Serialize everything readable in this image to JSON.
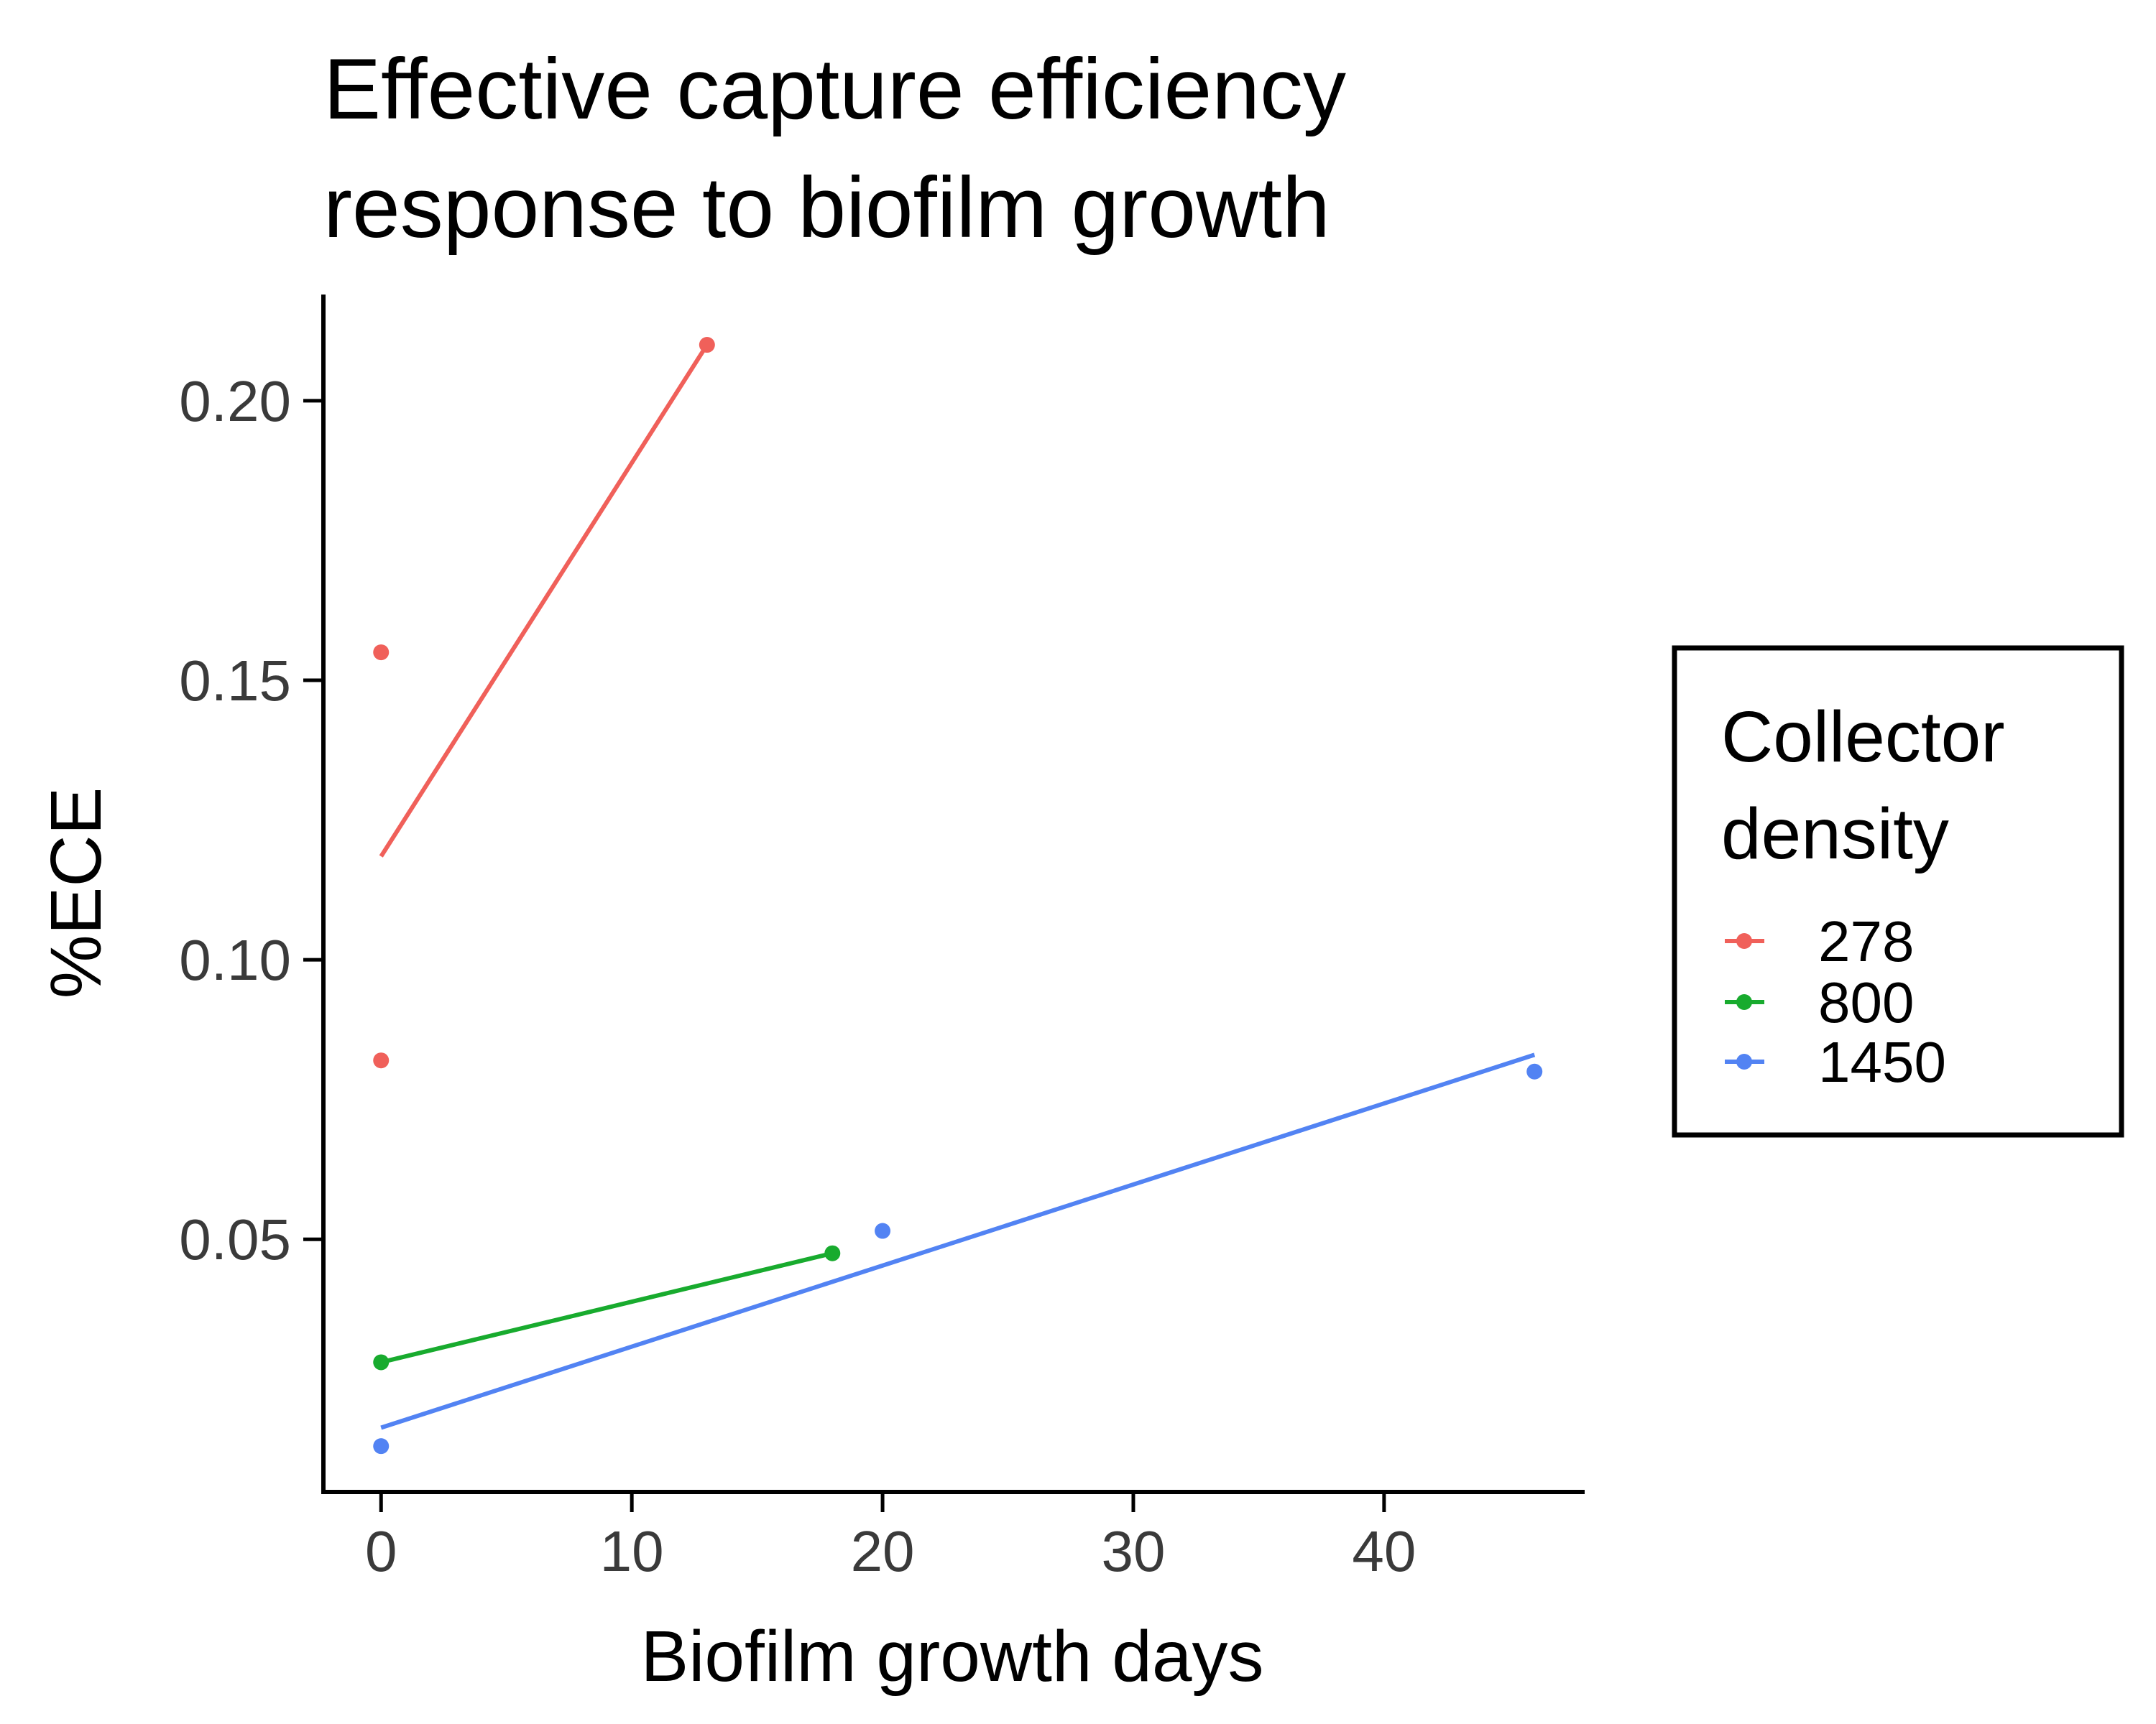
{
  "chart_data": {
    "type": "scatter",
    "title_lines": [
      "Effective capture efficiency",
      "response to biofilm growth"
    ],
    "xlabel": "Biofilm growth days",
    "ylabel": "%ECE",
    "xlim": [
      -2.3,
      48
    ],
    "ylim": [
      0.0048,
      0.219
    ],
    "x_ticks": [
      0,
      10,
      20,
      30,
      40
    ],
    "x_tick_labels": [
      "0",
      "10",
      "20",
      "30",
      "40"
    ],
    "y_ticks": [
      0.05,
      0.1,
      0.15,
      0.2
    ],
    "y_tick_labels": [
      "0.05",
      "0.10",
      "0.15",
      "0.20"
    ],
    "grid": false,
    "legend": {
      "title_lines": [
        "Collector",
        "density"
      ],
      "placement": "right",
      "entries": [
        "278",
        "800",
        "1450"
      ]
    },
    "series": [
      {
        "name": "278",
        "color": "#F0605A",
        "points": [
          [
            0,
            0.155
          ],
          [
            0,
            0.082
          ],
          [
            13,
            0.21
          ]
        ],
        "fit": [
          [
            0,
            0.1185
          ],
          [
            13,
            0.21
          ]
        ]
      },
      {
        "name": "800",
        "color": "#18AB2E",
        "points": [
          [
            0,
            0.028
          ],
          [
            18,
            0.0475
          ]
        ],
        "fit": [
          [
            0,
            0.028
          ],
          [
            18,
            0.0475
          ]
        ]
      },
      {
        "name": "1450",
        "color": "#5283F3",
        "points": [
          [
            0,
            0.013
          ],
          [
            20,
            0.0515
          ],
          [
            46,
            0.08
          ]
        ],
        "fit": [
          [
            0,
            0.0163
          ],
          [
            46,
            0.083
          ]
        ]
      }
    ]
  }
}
